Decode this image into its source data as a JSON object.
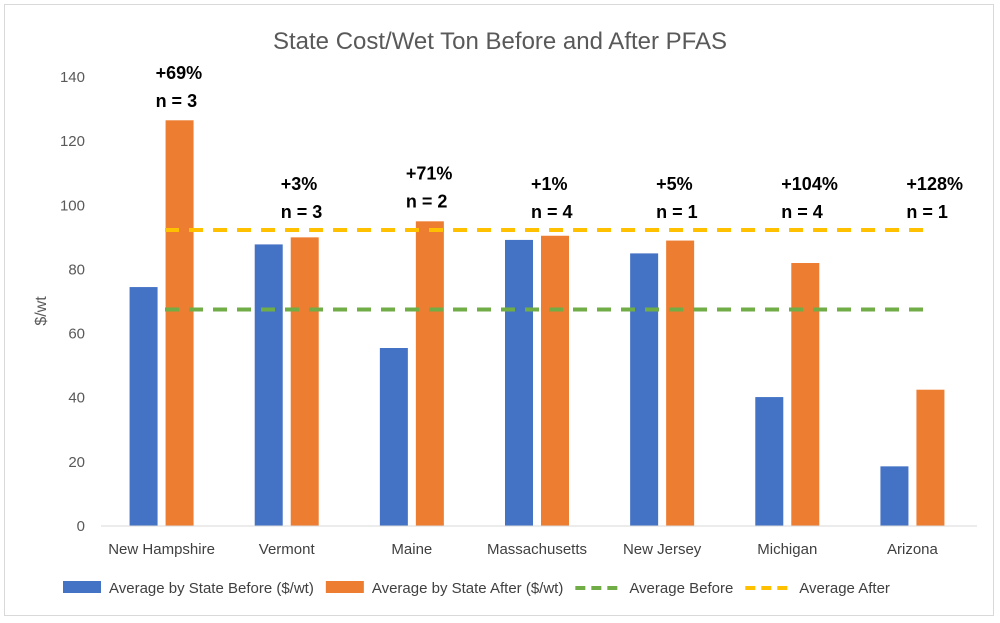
{
  "chart_data": {
    "type": "bar",
    "title": "State Cost/Wet Ton Before and After PFAS",
    "xlabel": "",
    "ylabel": "$/wt",
    "ylim": [
      0,
      140
    ],
    "yticks": [
      0,
      20,
      40,
      60,
      80,
      100,
      120,
      140
    ],
    "grid": false,
    "legend_position": "bottom",
    "categories": [
      "New Hampshire",
      "Vermont",
      "Maine",
      "Massachusetts",
      "New Jersey",
      "Michigan",
      "Arizona"
    ],
    "series": [
      {
        "name": "Average by State Before ($/wt)",
        "kind": "bar",
        "color": "#4472C4",
        "values": [
          74.5,
          87.8,
          55.5,
          89.2,
          85.0,
          40.2,
          18.6
        ]
      },
      {
        "name": "Average by State After ($/wt)",
        "kind": "bar",
        "color": "#ED7D31",
        "values": [
          126.5,
          90.0,
          95.0,
          90.5,
          89.0,
          82.0,
          42.5
        ]
      },
      {
        "name": "Average Before",
        "kind": "line",
        "style": "dashed",
        "color": "#70AD47",
        "value": 67.5
      },
      {
        "name": "Average After",
        "kind": "line",
        "style": "dashed",
        "color": "#FFC000",
        "value": 92.3
      }
    ],
    "annotations": [
      {
        "category": "New Hampshire",
        "change": "+69%",
        "n": "n = 3"
      },
      {
        "category": "Vermont",
        "change": "+3%",
        "n": "n = 3"
      },
      {
        "category": "Maine",
        "change": "+71%",
        "n": "n = 2"
      },
      {
        "category": "Massachusetts",
        "change": "+1%",
        "n": "n = 4"
      },
      {
        "category": "New Jersey",
        "change": "+5%",
        "n": "n = 1"
      },
      {
        "category": "Michigan",
        "change": "+104%",
        "n": "n = 4"
      },
      {
        "category": "Arizona",
        "change": "+128%",
        "n": "n = 1"
      }
    ]
  }
}
